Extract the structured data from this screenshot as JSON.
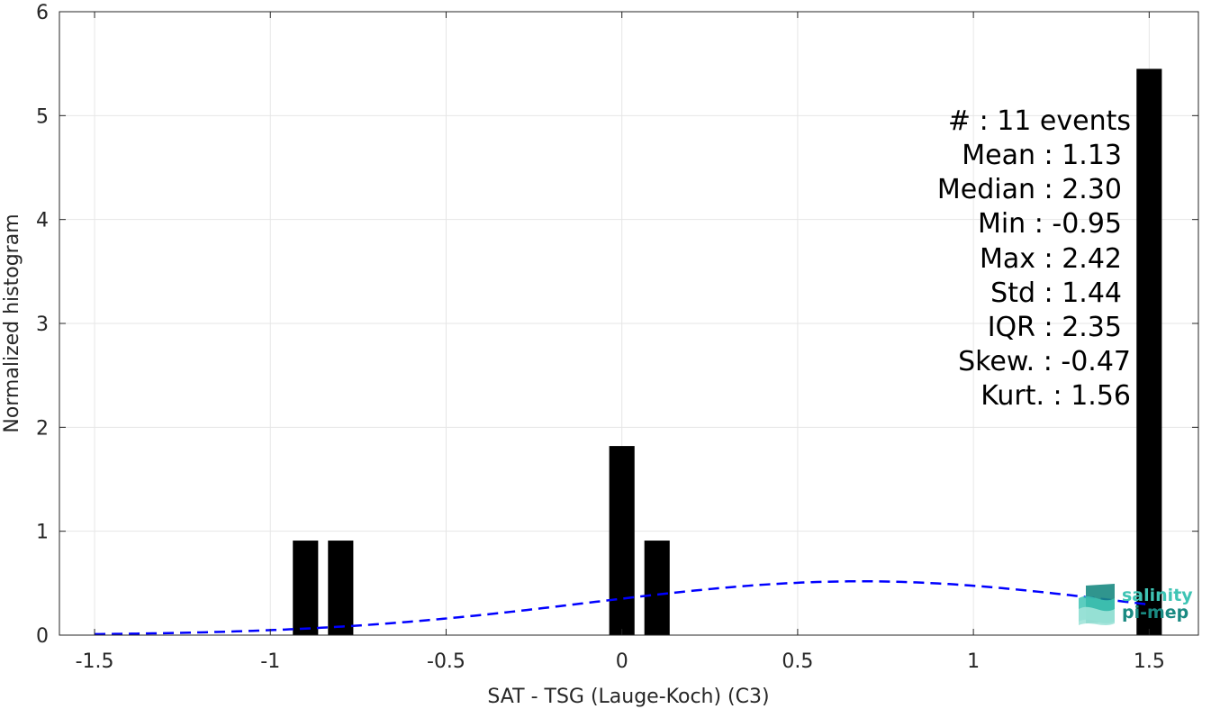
{
  "chart_data": {
    "type": "bar",
    "xlabel": "SAT - TSG (Lauge-Koch) (C3)",
    "ylabel": "Normalized histogram",
    "xlim": [
      -1.6,
      1.64
    ],
    "ylim": [
      0,
      6
    ],
    "xticks": [
      -1.5,
      -1,
      -0.5,
      0,
      0.5,
      1,
      1.5
    ],
    "xtick_labels": [
      "-1.5",
      "-1",
      "-0.5",
      "0",
      "0.5",
      "1",
      "1.5"
    ],
    "yticks": [
      0,
      1,
      2,
      3,
      4,
      5,
      6
    ],
    "ytick_labels": [
      "0",
      "1",
      "2",
      "3",
      "4",
      "5",
      "6"
    ],
    "grid": true,
    "bar_color": "#000000",
    "bar_width": 0.072,
    "bars": [
      {
        "x": -0.9,
        "value": 0.91
      },
      {
        "x": -0.8,
        "value": 0.91
      },
      {
        "x": 0.0,
        "value": 1.82
      },
      {
        "x": 0.1,
        "value": 0.91
      },
      {
        "x": 1.5,
        "value": 5.45
      }
    ],
    "fit_curve": {
      "type": "normal-pdf",
      "mean": 0.68,
      "std": 0.77,
      "x_range": [
        -1.5,
        1.5
      ],
      "color": "#0000ff",
      "style": "dashed"
    },
    "annotations": [
      "#  : 11 events",
      "Mean : 1.13",
      "Median : 2.30",
      "Min : -0.95",
      "Max : 2.42",
      "Std : 1.44",
      "IQR : 2.35",
      "Skew. : -0.47",
      "Kurt. : 1.56"
    ]
  },
  "logo": {
    "line1": "salinity",
    "line2": "pi-mep",
    "color_dark": "#1a8a82",
    "color_light": "#3ec4b4"
  }
}
